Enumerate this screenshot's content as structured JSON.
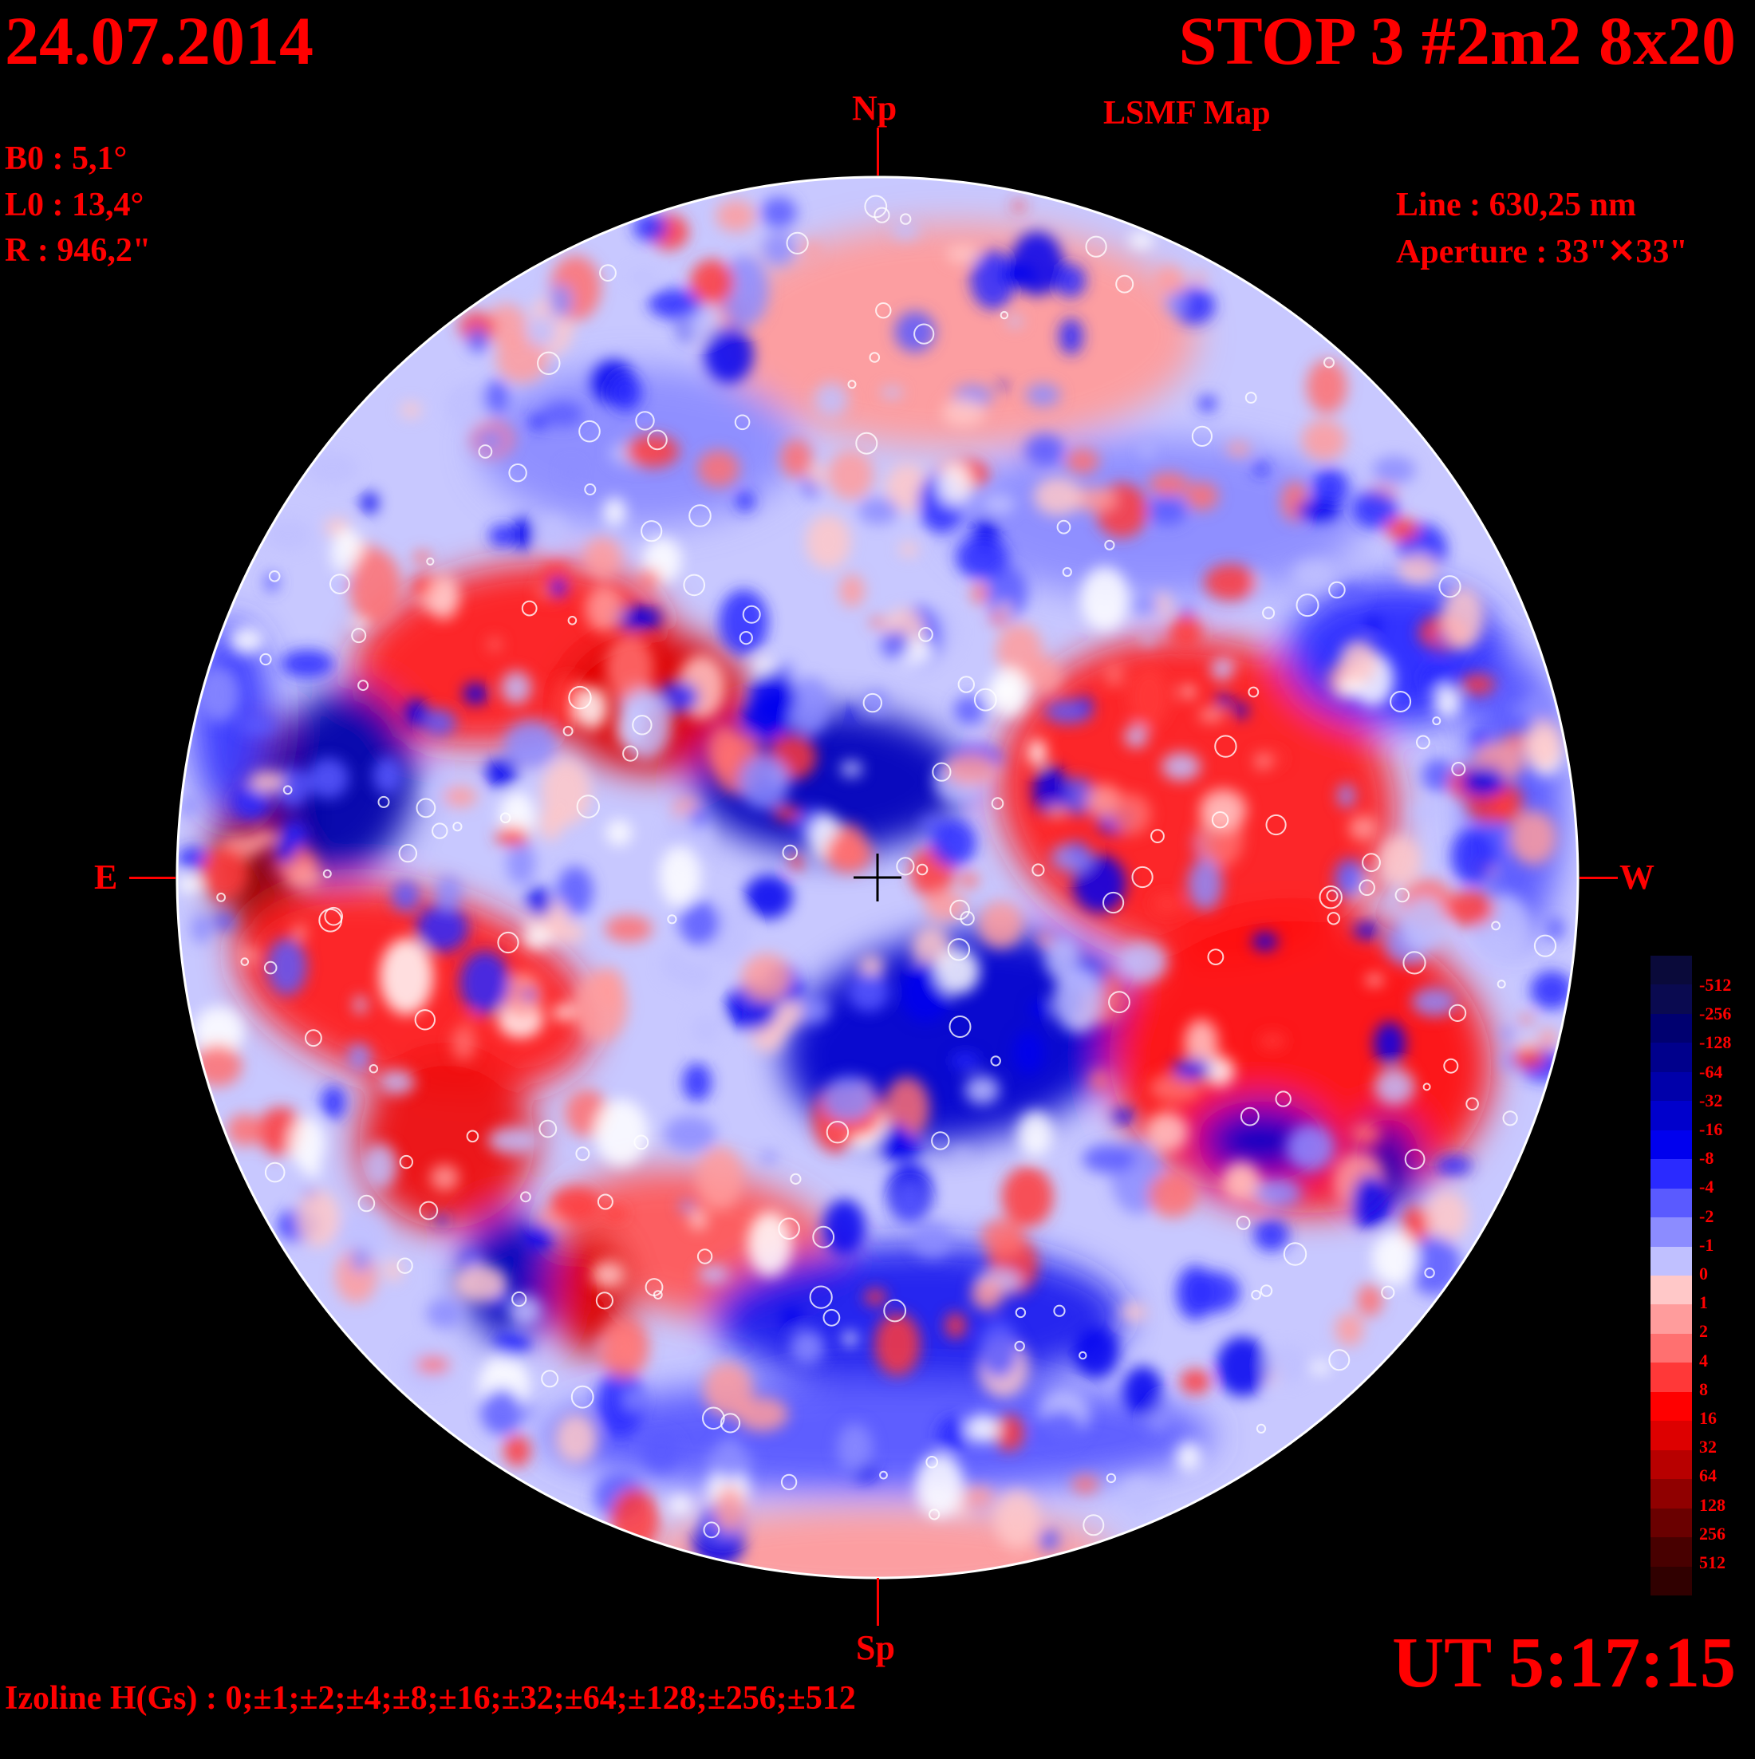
{
  "header": {
    "date": "24.07.2014",
    "title": "STOP 3 #2m2 8x20",
    "subtitle": "LSMF  Map"
  },
  "params": {
    "b0": "B0 : 5,1°",
    "l0": "L0 : 13,4°",
    "r": "R  : 946,2\""
  },
  "instrument": {
    "line": "Line :  630,25 nm",
    "aperture": "Aperture : 33\"✕33\""
  },
  "directions": {
    "north": "Np",
    "south": "Sp",
    "east": "E",
    "west": "W"
  },
  "time": "UT 5:17:15",
  "izoline": "Izoline H(Gs) : 0;±1;±2;±4;±8;±16;±32;±64;±128;±256;±512",
  "colorbar": {
    "labels": [
      "-512",
      "-256",
      "-128",
      "-64",
      "-32",
      "-16",
      "-8",
      "-4",
      "-2",
      "-1",
      "0",
      "1",
      "2",
      "4",
      "8",
      "16",
      "32",
      "64",
      "128",
      "256",
      "512"
    ],
    "colors": [
      "#0a0a3a",
      "#0a0a50",
      "#000070",
      "#00008c",
      "#0000aa",
      "#0000cc",
      "#0000ee",
      "#2a2aff",
      "#5a5aff",
      "#8c8cff",
      "#c0c0ff",
      "#ffc8c8",
      "#ff9c9c",
      "#ff7070",
      "#ff3838",
      "#ff0000",
      "#dd0000",
      "#b80000",
      "#900000",
      "#6a0000",
      "#480000",
      "#300000"
    ]
  },
  "colors": {
    "text": "#ff0000",
    "background": "#000000",
    "contour": "#ffffff"
  }
}
